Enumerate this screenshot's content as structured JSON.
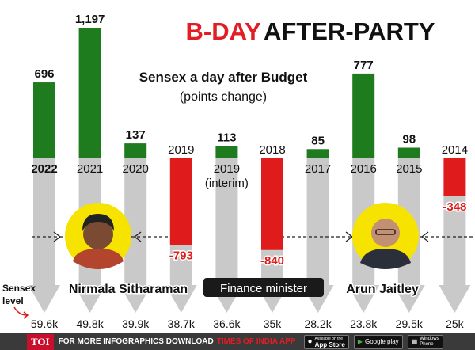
{
  "title_part1": "B-DAY",
  "title_part2": "AFTER-PARTY",
  "subtitle": "Sensex a day after Budget",
  "subtitle_unit": "(points change)",
  "sensex_label_line1": "Sensex",
  "sensex_label_line2": "level",
  "finance_minister_label": "Finance minister",
  "ministers": [
    {
      "name": "Nirmala Sitharaman"
    },
    {
      "name": "Arun Jaitley"
    }
  ],
  "footer": {
    "brand": "TOI",
    "text_a": "FOR MORE INFOGRAPHICS DOWNLOAD",
    "text_b": "TIMES OF INDIA APP",
    "store1_small": "Available on the",
    "store1": "App Store",
    "store2_small": "",
    "store2": "Google play",
    "store3_small": "Windows",
    "store3": "Phone"
  },
  "colors": {
    "positive": "#1e7b1e",
    "negative": "#e01b1b",
    "title_red": "#e21d24",
    "grey_arrow": "#c9c9c9",
    "footer_bg": "#3a3a3a"
  },
  "chart_data": {
    "type": "bar",
    "title": "Sensex a day after Budget",
    "ylabel": "(points change)",
    "categories": [
      "2022",
      "2021",
      "2020",
      "2019",
      "2019",
      "2018",
      "2017",
      "2016",
      "2015",
      "2014"
    ],
    "category_sublabels": [
      "",
      "",
      "",
      "",
      "(interim)",
      "",
      "",
      "",
      "",
      ""
    ],
    "values": [
      696,
      1197,
      137,
      -793,
      113,
      -840,
      85,
      777,
      98,
      -348
    ],
    "value_labels": [
      "696",
      "1,197",
      "137",
      "-793",
      "113",
      "-840",
      "85",
      "777",
      "98",
      "-348"
    ],
    "sensex_levels": [
      "59.6k",
      "49.8k",
      "39.9k",
      "38.7k",
      "36.6k",
      "35k",
      "28.2k",
      "23.8k",
      "29.5k",
      "25k"
    ],
    "ylim": [
      -900,
      1250
    ]
  }
}
